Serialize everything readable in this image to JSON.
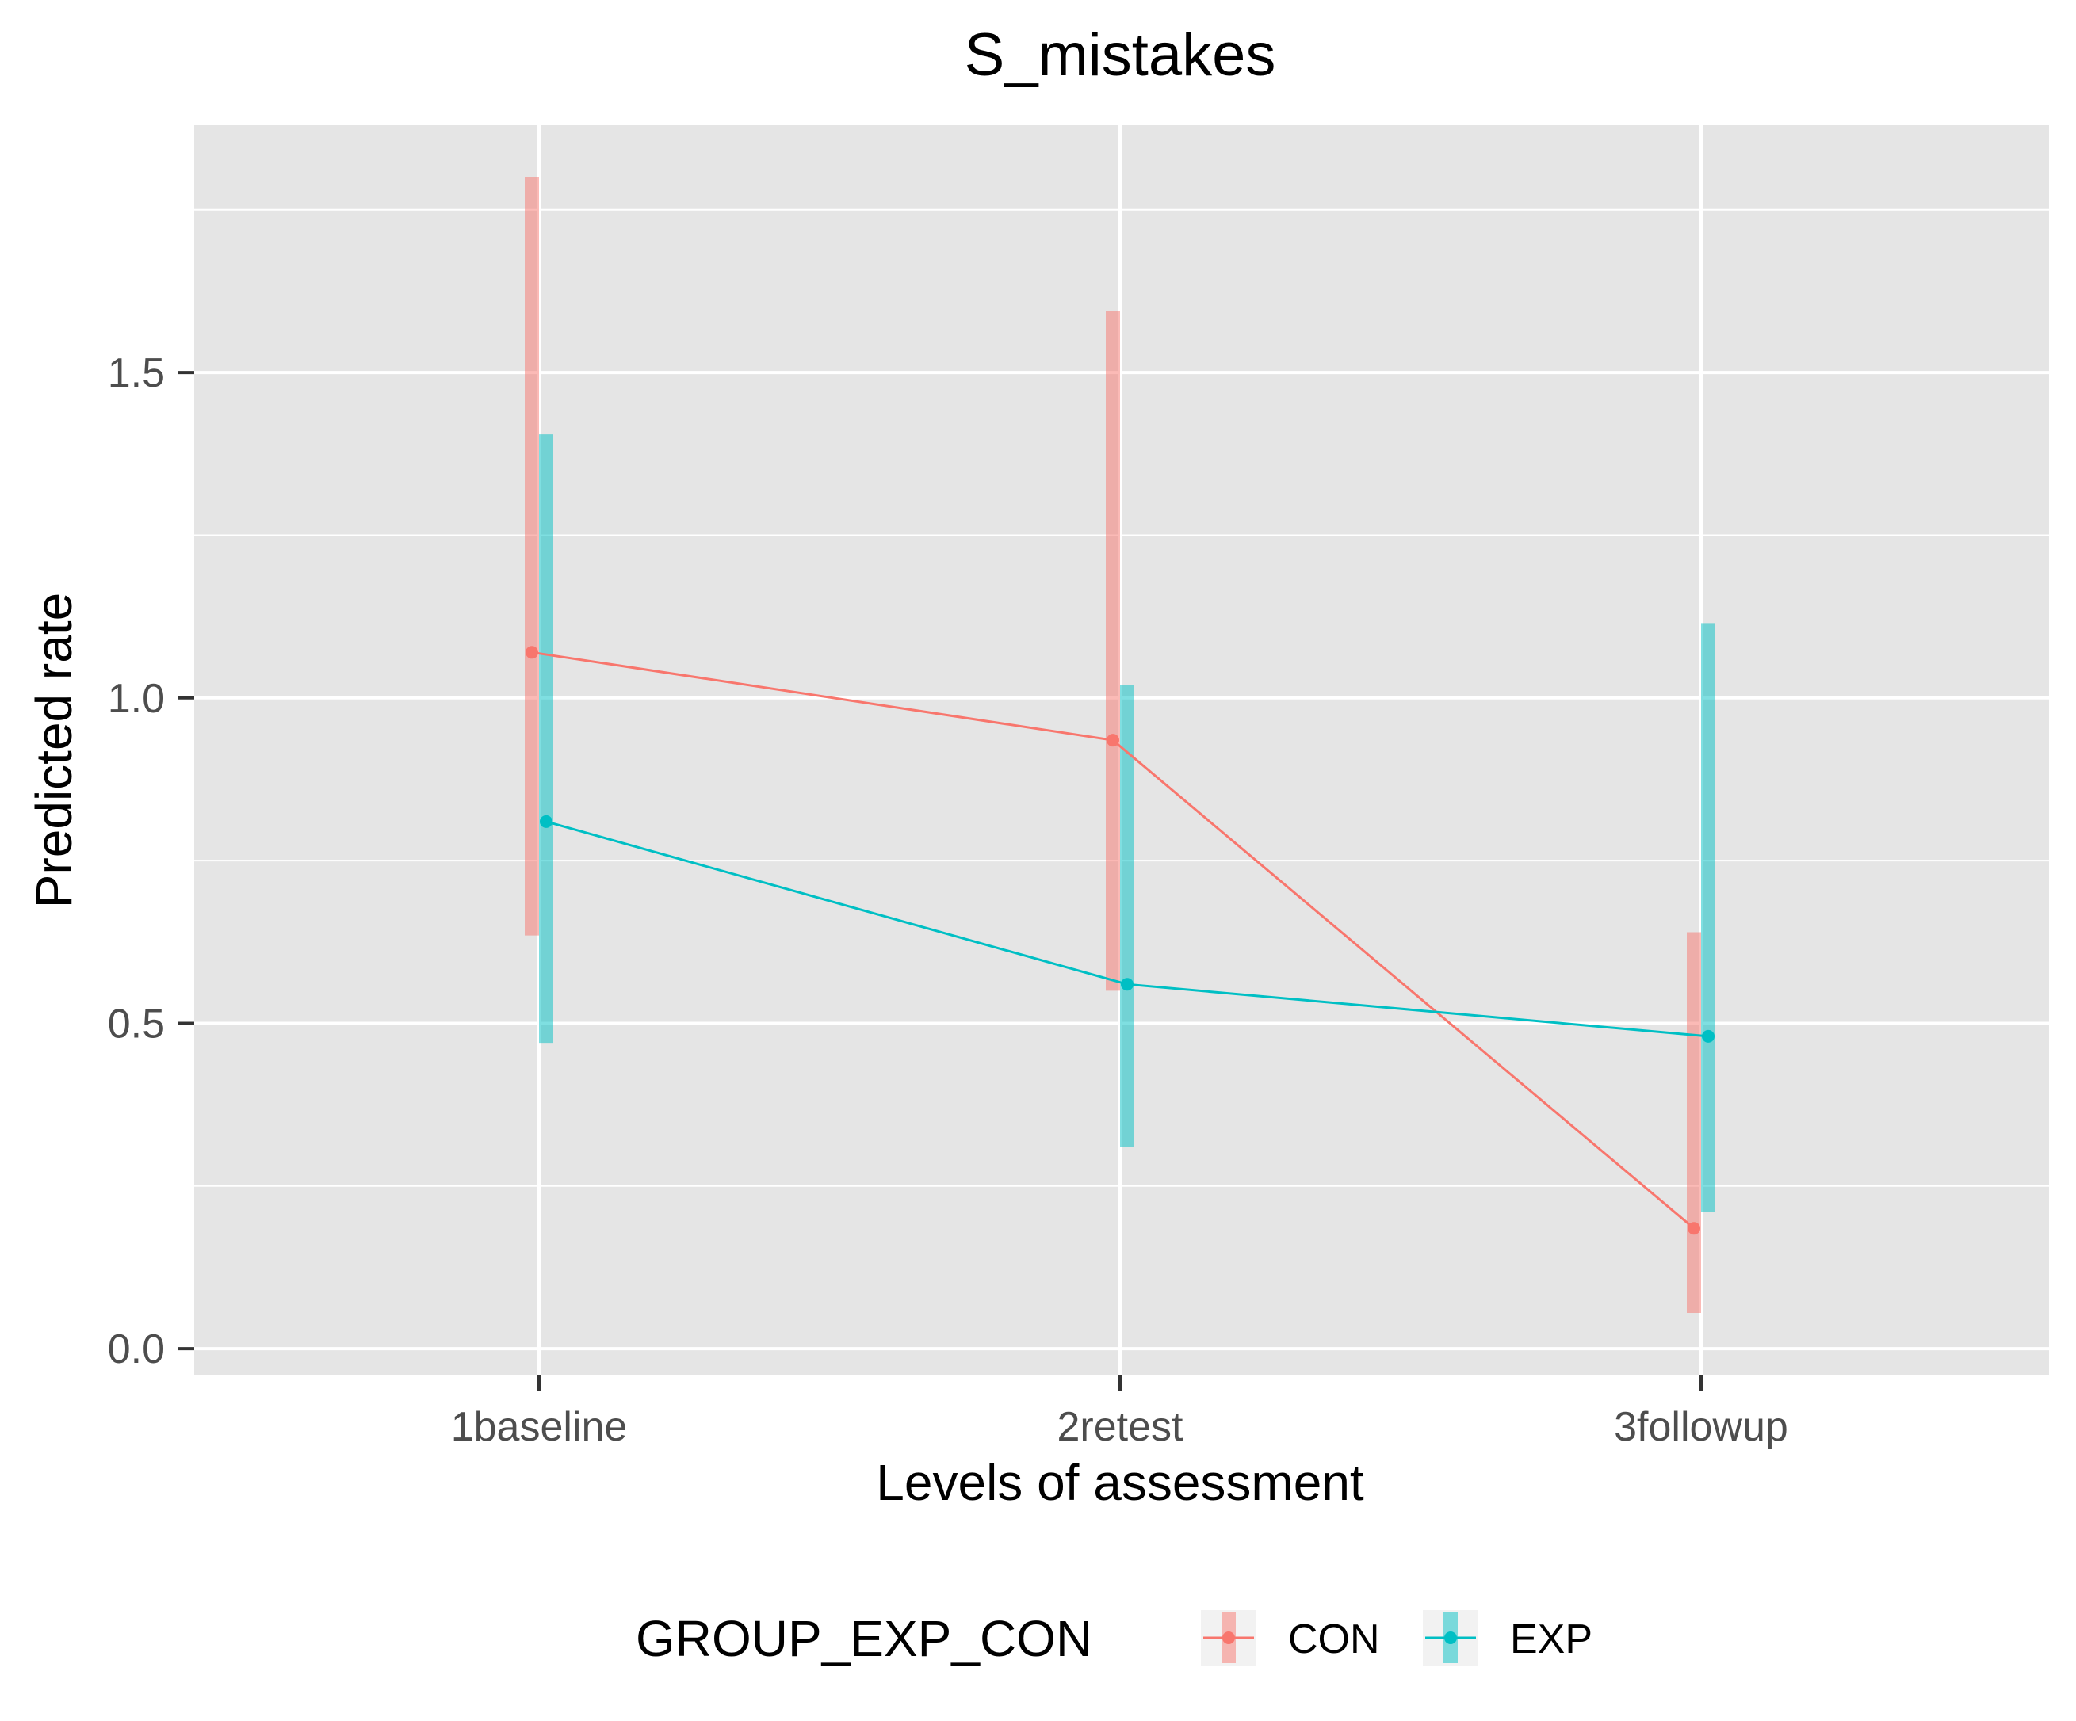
{
  "chart_data": {
    "type": "line",
    "title": "S_mistakes",
    "xlabel": "Levels of assessment",
    "ylabel": "Predicted rate",
    "categories": [
      "1baseline",
      "2retest",
      "3followup"
    ],
    "ylim": [
      -0.04,
      1.88
    ],
    "yticks": [
      0.0,
      0.5,
      1.0,
      1.5
    ],
    "ytick_labels": [
      "0.0",
      "0.5",
      "1.0",
      "1.5"
    ],
    "grid": true,
    "legend": {
      "title": "GROUP_EXP_CON",
      "position": "bottom"
    },
    "series": [
      {
        "name": "CON",
        "color": "#F8766D",
        "values": [
          1.07,
          0.935,
          0.185
        ],
        "lower": [
          0.635,
          0.55,
          0.055
        ],
        "upper": [
          1.8,
          1.595,
          0.64
        ]
      },
      {
        "name": "EXP",
        "color": "#00BFC4",
        "values": [
          0.81,
          0.56,
          0.48
        ],
        "lower": [
          0.47,
          0.31,
          0.21
        ],
        "upper": [
          1.405,
          1.02,
          1.115
        ]
      }
    ]
  }
}
